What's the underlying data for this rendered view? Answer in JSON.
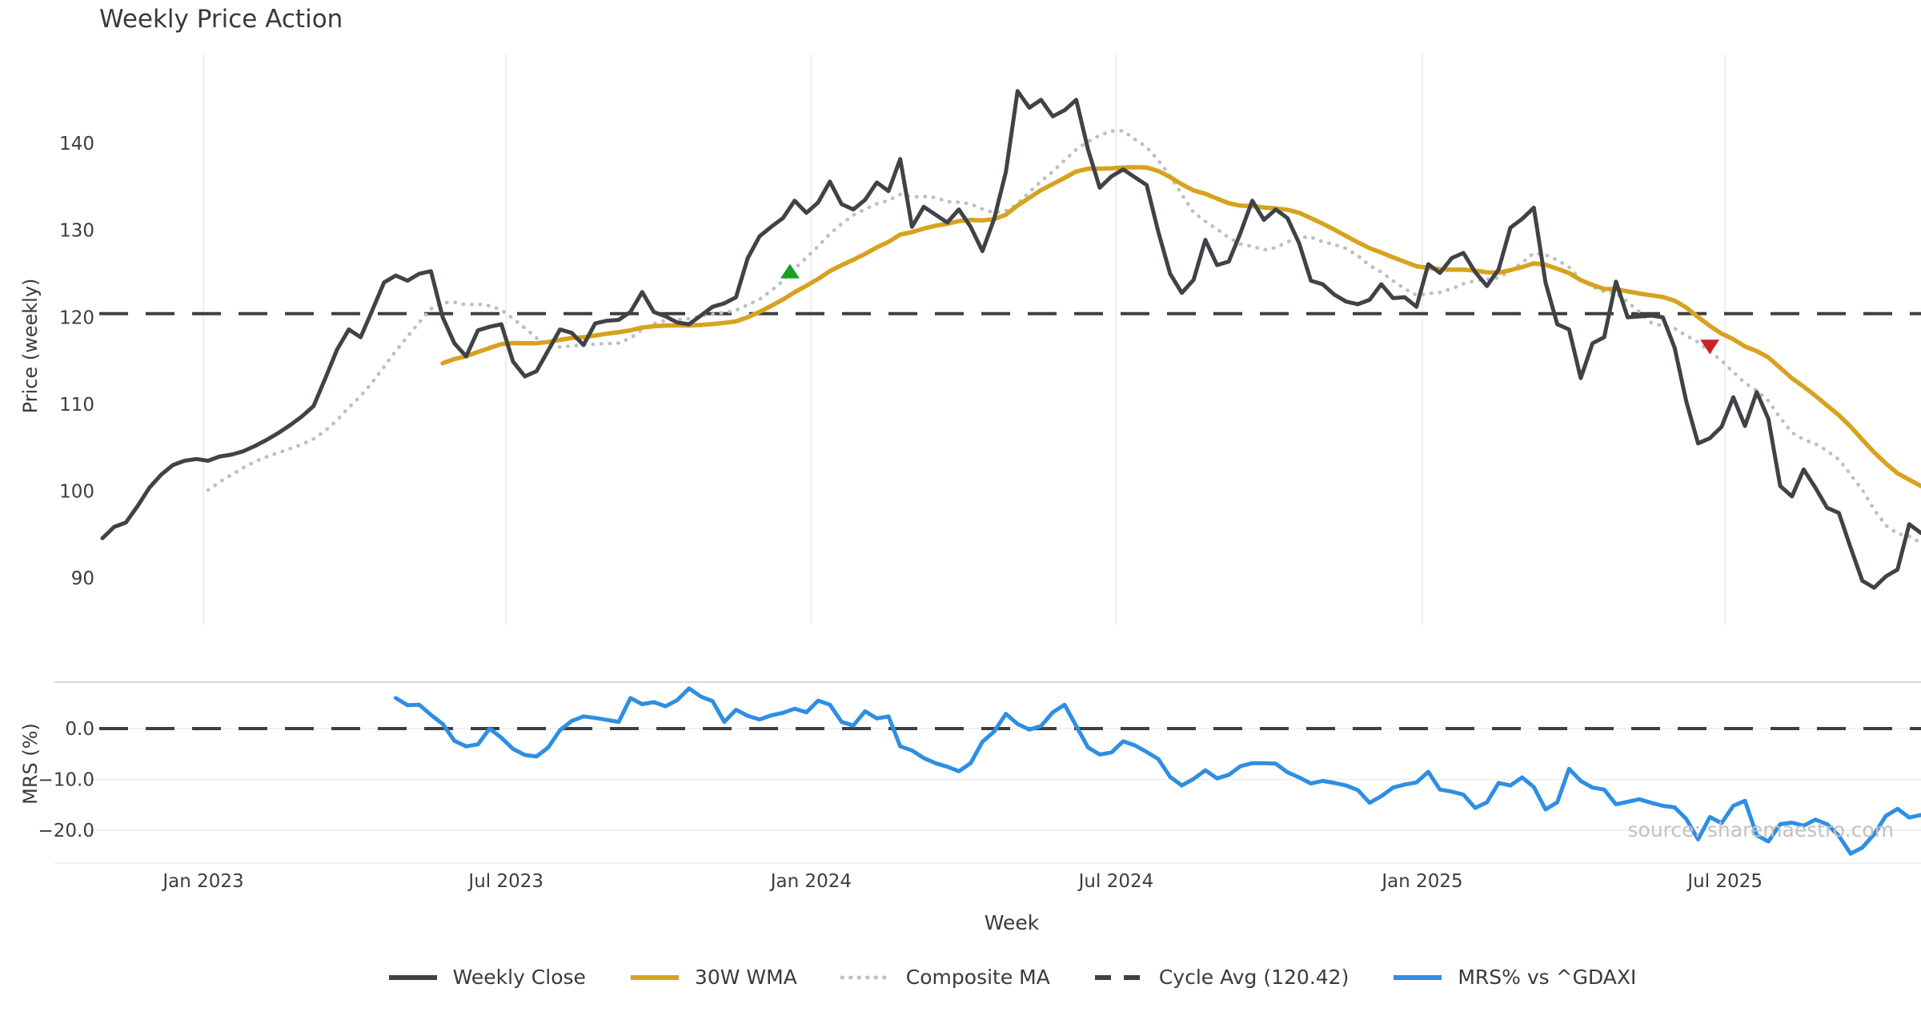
{
  "title": "Weekly Price Action",
  "source_note": "source: sharemaestro.com",
  "colors": {
    "close": "#3f4247",
    "wma": "#d7a21e",
    "composite": "#bfbfbf",
    "cycle": "#3f3f3f",
    "mrs": "#2e8ee4",
    "marker_up": "#16a024",
    "marker_down": "#cf1f24",
    "grid": "#ededef",
    "grid_light": "#f0f0f0",
    "panel_border": "#d9d9d9",
    "tick_text": "#3d3d3d"
  },
  "legend": [
    {
      "label": "Weekly Close",
      "style": "close"
    },
    {
      "label": "30W WMA",
      "style": "wma"
    },
    {
      "label": "Composite MA",
      "style": "composite"
    },
    {
      "label": "Cycle Avg (120.42)",
      "style": "cycle"
    },
    {
      "label": "MRS% vs ^GDAXI",
      "style": "mrs"
    }
  ],
  "chart_data": {
    "type": "line",
    "title": "Weekly Price Action",
    "xlabel": "Week",
    "x_unit": "week index (weekly bars, ~Nov 2022 to ~Nov 2025)",
    "x_ticks": [
      {
        "label": "Jan 2023",
        "week": 8.6
      },
      {
        "label": "Jul 2023",
        "week": 34.4
      },
      {
        "label": "Jan 2024",
        "week": 60.4
      },
      {
        "label": "Jul 2024",
        "week": 86.4
      },
      {
        "label": "Jan 2025",
        "week": 112.5
      },
      {
        "label": "Jul 2025",
        "week": 138.3
      }
    ],
    "price_axis": {
      "label": "Price (weekly)",
      "ticks": [
        140,
        130,
        120,
        110,
        100,
        90
      ],
      "range": [
        86.5,
        148.2
      ]
    },
    "mrs_axis": {
      "label": "MRS (%)",
      "ticks": [
        {
          "label": "0.0",
          "v": 0
        },
        {
          "label": "−10.0",
          "v": -10
        },
        {
          "label": "−20.0",
          "v": -20
        }
      ],
      "range": [
        -28.4,
        9.2
      ]
    },
    "cycle_avg": 120.42,
    "series": [
      {
        "name": "Weekly Close",
        "axis": "price",
        "start_week": 0,
        "values": [
          94.6,
          95.9,
          96.4,
          98.3,
          100.4,
          101.9,
          103.0,
          103.5,
          103.7,
          103.5,
          104.0,
          104.2,
          104.6,
          105.2,
          105.9,
          106.7,
          107.6,
          108.6,
          109.8,
          113.0,
          116.3,
          118.6,
          117.7,
          120.8,
          124.0,
          124.8,
          124.2,
          125.0,
          125.3,
          120.0,
          117.0,
          115.5,
          118.5,
          118.9,
          119.2,
          114.9,
          113.2,
          113.8,
          116.2,
          118.6,
          118.2,
          116.8,
          119.3,
          119.6,
          119.7,
          120.6,
          122.9,
          120.6,
          120.1,
          119.4,
          119.2,
          120.2,
          121.2,
          121.6,
          122.3,
          126.8,
          129.3,
          130.4,
          131.4,
          133.4,
          132.0,
          133.2,
          135.6,
          133.0,
          132.4,
          133.5,
          135.5,
          134.5,
          138.2,
          130.4,
          132.7,
          131.8,
          130.9,
          132.4,
          130.4,
          127.6,
          131.3,
          136.7,
          146.0,
          144.1,
          145.0,
          143.1,
          143.8,
          145.0,
          139.3,
          134.9,
          136.2,
          137.0,
          136.1,
          135.2,
          129.8,
          125.0,
          122.8,
          124.3,
          128.9,
          126.0,
          126.4,
          129.7,
          133.4,
          131.2,
          132.4,
          131.4,
          128.5,
          124.2,
          123.8,
          122.6,
          121.8,
          121.5,
          122.0,
          123.8,
          122.2,
          122.3,
          121.2,
          126.1,
          125.1,
          126.8,
          127.4,
          125.2,
          123.6,
          125.5,
          130.3,
          131.3,
          132.6,
          124.0,
          119.2,
          118.6,
          113.0,
          117.0,
          117.7,
          124.1,
          120.0,
          120.1,
          120.2,
          120.0,
          116.5,
          110.3,
          105.5,
          106.1,
          107.4,
          110.8,
          107.5,
          111.4,
          108.3,
          100.6,
          99.4,
          102.5,
          100.4,
          98.1,
          97.5,
          93.5,
          89.7,
          88.9,
          90.2,
          91.0,
          96.2,
          95.2
        ]
      },
      {
        "name": "30W WMA",
        "axis": "price",
        "start_week": 29,
        "derived": {
          "method": "weighted_ma",
          "window": 30,
          "source": "Weekly Close"
        }
      },
      {
        "name": "Composite MA",
        "axis": "price",
        "start_week": 9,
        "derived": {
          "method": "sma",
          "window": 10,
          "source": "Weekly Close"
        }
      },
      {
        "name": "MRS% vs ^GDAXI",
        "axis": "mrs",
        "start_week": 25,
        "values": [
          6.0,
          4.6,
          4.7,
          2.7,
          0.9,
          -2.4,
          -3.5,
          -3.1,
          0.0,
          -1.8,
          -4.0,
          -5.2,
          -5.5,
          -3.7,
          -0.3,
          1.5,
          2.4,
          2.1,
          1.7,
          1.3,
          6.0,
          4.8,
          5.2,
          4.4,
          5.6,
          7.9,
          6.3,
          5.4,
          1.3,
          3.7,
          2.5,
          1.8,
          2.6,
          3.1,
          3.9,
          3.2,
          5.5,
          4.7,
          1.3,
          0.6,
          3.4,
          2.0,
          2.4,
          -3.5,
          -4.3,
          -5.8,
          -6.8,
          -7.5,
          -8.4,
          -6.8,
          -2.6,
          -0.6,
          2.9,
          0.9,
          -0.2,
          0.5,
          3.2,
          4.7,
          0.5,
          -3.7,
          -5.1,
          -4.7,
          -2.5,
          -3.3,
          -4.6,
          -6.0,
          -9.5,
          -11.2,
          -9.9,
          -8.2,
          -9.8,
          -9.1,
          -7.4,
          -6.8,
          -6.8,
          -6.9,
          -8.6,
          -9.6,
          -10.8,
          -10.3,
          -10.7,
          -11.2,
          -12.1,
          -14.6,
          -13.3,
          -11.6,
          -11.0,
          -10.6,
          -8.5,
          -12.0,
          -12.4,
          -13.0,
          -15.6,
          -14.5,
          -10.7,
          -11.2,
          -9.6,
          -11.5,
          -15.9,
          -14.5,
          -7.9,
          -10.3,
          -11.6,
          -12.0,
          -14.9,
          -14.4,
          -13.9,
          -14.6,
          -15.2,
          -15.5,
          -17.8,
          -21.8,
          -17.4,
          -18.6,
          -15.2,
          -14.2,
          -21.0,
          -22.2,
          -18.8,
          -18.5,
          -19.1,
          -17.9,
          -18.8,
          -21.1,
          -24.6,
          -23.4,
          -20.8,
          -17.2,
          -15.8,
          -17.5,
          -17.0
        ]
      }
    ],
    "markers": [
      {
        "shape": "triangle-up",
        "week": 58.6,
        "value": 125.3,
        "color_key": "marker_up"
      },
      {
        "shape": "triangle-down",
        "week": 137.0,
        "value": 116.6,
        "color_key": "marker_down"
      }
    ],
    "grid": {
      "price_panel": "vertical date gridlines only",
      "mrs_panel": "horizontal gridlines at 0, -10, -20"
    },
    "legend_position": "bottom center"
  }
}
